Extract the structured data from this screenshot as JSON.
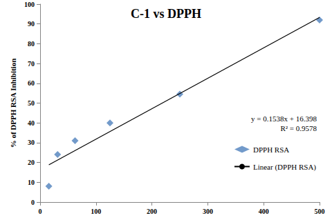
{
  "chart_data": {
    "type": "scatter",
    "title": "C-1 vs DPPH",
    "ylabel": "% of DPPH RSA Inhibition",
    "series": [
      {
        "name": "DPPH RSA",
        "type": "scatter",
        "marker": "diamond",
        "color": "#4f81bd",
        "x": [
          15.625,
          31.25,
          62.5,
          125,
          250,
          500
        ],
        "values": [
          8,
          24,
          31,
          40,
          54.5,
          92
        ]
      },
      {
        "name": "Linear (DPPH RSA)",
        "type": "line",
        "line_style": "solid",
        "color": "#000000",
        "x": [
          15.625,
          500
        ],
        "values": [
          18.8,
          93.3
        ]
      }
    ],
    "annotations": [
      "y = 0.1538x + 16.398",
      "R² = 0.9578"
    ],
    "xlim": [
      0,
      500
    ],
    "xticks": [
      0,
      100,
      200,
      300,
      400,
      500
    ],
    "ylim": [
      0,
      100
    ],
    "yticks": [
      0,
      10,
      20,
      30,
      40,
      50,
      60,
      70,
      80,
      90,
      100
    ],
    "grid": false,
    "legend": "right"
  }
}
